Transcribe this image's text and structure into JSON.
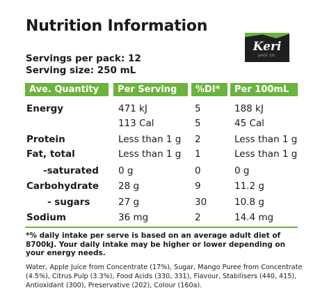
{
  "title": "Nutrition Information",
  "logo": {
    "brand": "Keri",
    "sub": "JUICE CO."
  },
  "servings_per_pack": "Servings per pack: 12",
  "serving_size": "Serving size: 250 mL",
  "headers": [
    "Ave. Quantity",
    "Per Serving",
    "%DI*",
    "Per 100mL"
  ],
  "rows": [
    {
      "label": "Energy",
      "per_serving": "471 kJ",
      "di": "5",
      "per_100": "188 kJ"
    },
    {
      "label": "",
      "per_serving": "113 Cal",
      "di": "5",
      "per_100": "45 Cal"
    },
    {
      "label": "Protein",
      "per_serving": "Less than 1 g",
      "di": "2",
      "per_100": "Less than 1 g"
    },
    {
      "label": "Fat, total",
      "per_serving": "Less than 1 g",
      "di": "1",
      "per_100": "Less than 1 g"
    },
    {
      "label": "-saturated",
      "per_serving": "0 g",
      "di": "0",
      "per_100": "0 g"
    },
    {
      "label": "Carbohydrate",
      "per_serving": "28 g",
      "di": "9",
      "per_100": "11.2 g"
    },
    {
      "label": "- sugars",
      "per_serving": "27 g",
      "di": "30",
      "per_100": "10.8 g"
    },
    {
      "label": "Sodium",
      "per_serving": "36 mg",
      "di": "2",
      "per_100": "14.4 mg"
    }
  ],
  "footnote": "*% daily intake per serve is based on an average adult diet of 8700kJ. Your daily intake may be higher or lower depending on your energy needs.",
  "ingredients": "Water, Apple Juice from Concentrate (17%), Sugar, Mango Puree from Concentrate (4.5%), Citrus Pulp (3.3%), Food Acids (330, 331), Flavour, Stabilisers (440, 415), Antioxidant (300), Preservative (202), Colour (160a).",
  "colors": {
    "accent": "#6cb33e",
    "logo_bg": "#1f1f1f"
  }
}
